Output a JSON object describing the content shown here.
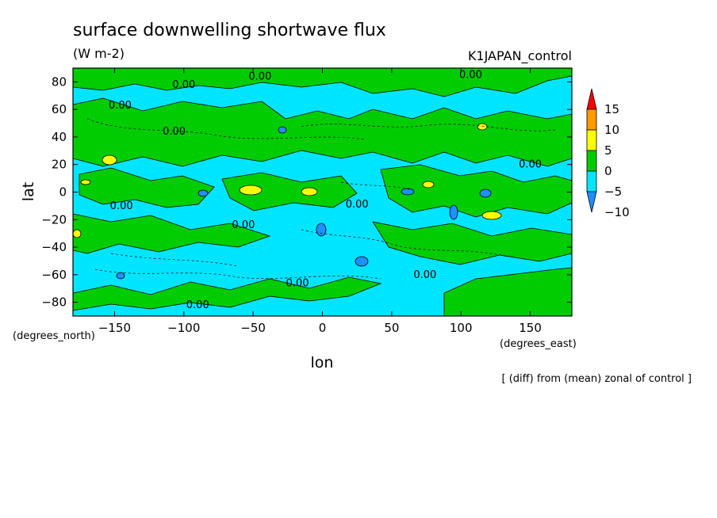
{
  "chart_data": {
    "type": "heatmap",
    "title": "surface downwelling shortwave flux",
    "units": "(W m-2)",
    "experiment": "K1JAPAN_control",
    "xlabel": "lon",
    "ylabel": "lat",
    "x_unit_label": "(degrees_east)",
    "y_unit_label": "(degrees_north)",
    "note": "[ (diff) from (mean) zonal of control ]",
    "xlim": [
      -180,
      180
    ],
    "ylim": [
      -90,
      90
    ],
    "x_ticks": [
      -150,
      -100,
      -50,
      0,
      50,
      100,
      150
    ],
    "y_ticks": [
      80,
      60,
      40,
      20,
      0,
      -20,
      -40,
      -60,
      -80
    ],
    "colorbar": {
      "levels": [
        -10,
        -5,
        0,
        5,
        10,
        15
      ],
      "colors": [
        "#1e90ff",
        "#00e5ff",
        "#00cc00",
        "#ffff00",
        "#ff9900",
        "#ff0000"
      ]
    },
    "contour_labels": [
      {
        "text": "0.00",
        "lon": -146,
        "lat": 63
      },
      {
        "text": "0.00",
        "lon": -100,
        "lat": 78
      },
      {
        "text": "0.00",
        "lon": -45,
        "lat": 84
      },
      {
        "text": "0.00",
        "lon": 107,
        "lat": 85
      },
      {
        "text": "0.00",
        "lon": -107,
        "lat": 44
      },
      {
        "text": "0.00",
        "lon": -145,
        "lat": -10
      },
      {
        "text": "0.00",
        "lon": -57,
        "lat": -24
      },
      {
        "text": "0.00",
        "lon": 25,
        "lat": -9
      },
      {
        "text": "0.00",
        "lon": 74,
        "lat": -60
      },
      {
        "text": "0.00",
        "lon": -90,
        "lat": -82
      },
      {
        "text": "0.00",
        "lon": -18,
        "lat": -66
      },
      {
        "text": "0.00",
        "lon": 150,
        "lat": 20
      }
    ]
  }
}
